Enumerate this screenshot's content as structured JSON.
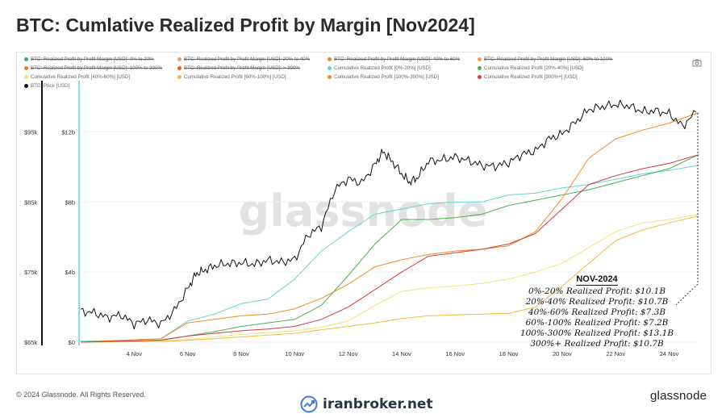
{
  "title": "BTC: Cumlative Realized Profit by Margin [Nov2024]",
  "legend": [
    {
      "label": "BTC: Realized Profit by Profit Margin [USD]: 0% to 20%",
      "color": "#3aa88a",
      "struck": true
    },
    {
      "label": "BTC: Realized Profit by Profit Margin [USD]: 20% to 40%",
      "color": "#e8a060",
      "struck": true
    },
    {
      "label": "BTC: Realized Profit by Profit Margin [USD]: 40% to 60%",
      "color": "#e8922e",
      "struck": true
    },
    {
      "label": "BTC: Realized Profit by Profit Margin [USD]: 60% to 100%",
      "color": "#f0a040",
      "struck": true
    },
    {
      "label": "BTC: Realized Profit by Profit Margin [USD]: 100% to 300%",
      "color": "#e07a3a",
      "struck": true
    },
    {
      "label": "BTC: Realized Profit by Profit Margin [USD]: > 300%",
      "color": "#d9603a",
      "struck": true
    },
    {
      "label": "Cumulative Realized Profit [0%-20%] [USD]",
      "color": "#5ed8d0",
      "struck": false
    },
    {
      "label": "Cumulative Realized Profit [20%-40%] [USD]",
      "color": "#4caf50",
      "struck": false
    },
    {
      "label": "Cumulative Realized Profit [40%-60%] [USD]",
      "color": "#f2e27a",
      "struck": false
    },
    {
      "label": "Cumulative Realized Profit [60%-100%] [USD]",
      "color": "#f5b83c",
      "struck": false
    },
    {
      "label": "Cumulative Realized Profit [100%-300%] [USD]",
      "color": "#f08a24",
      "struck": false
    },
    {
      "label": "Cumulative Realized Profit [300%+] [USD]",
      "color": "#d03a3a",
      "struck": false
    },
    {
      "label": "BTC: Price [USD]",
      "color": "#111111",
      "struck": false
    }
  ],
  "watermark_center": "glassnode",
  "annotation": {
    "title": "NOV-2024",
    "lines": [
      "0%-20% Realized Profit: $10.1B",
      "20%-40% Realized Profit: $10.7B",
      "40%-60% Realized Profit: $7.3B",
      "60%-100% Realized Profit: $7.2B",
      "100%-300% Realized Profit: $13.1B",
      "300%+ Realized Profit: $10.7B"
    ]
  },
  "footer": {
    "copyright": "© 2024 Glassnode. All Rights Reserved.",
    "source_watermark": "iranbroker.net",
    "brand": "glassnode"
  },
  "chart_data": {
    "type": "line",
    "x_ticks": [
      "4 Nov",
      "6 Nov",
      "8 Nov",
      "10 Nov",
      "12 Nov",
      "14 Nov",
      "16 Nov",
      "18 Nov",
      "20 Nov",
      "22 Nov",
      "24 Nov"
    ],
    "x_range_days": [
      2.0,
      25.1
    ],
    "y_left": {
      "ticks": [
        "$65k",
        "$75k",
        "$85k",
        "$95k"
      ],
      "values": [
        65000,
        75000,
        85000,
        95000
      ],
      "range": [
        65000,
        100000
      ]
    },
    "y_right": {
      "ticks": [
        "$0",
        "$4b",
        "$8b",
        "$12b"
      ],
      "values": [
        0,
        4,
        8,
        12
      ],
      "range": [
        0,
        14
      ]
    },
    "price_series": {
      "name": "BTC: Price [USD]",
      "color": "#111111",
      "axis": "left",
      "x": [
        2.0,
        2.5,
        3.0,
        3.5,
        4.0,
        4.5,
        5.0,
        5.5,
        6.0,
        6.3,
        6.6,
        7.0,
        7.5,
        8.0,
        8.5,
        9.0,
        9.5,
        10.0,
        10.5,
        11.0,
        11.5,
        12.0,
        12.5,
        13.0,
        13.3,
        13.6,
        14.0,
        14.3,
        14.6,
        15.0,
        15.5,
        16.0,
        16.5,
        17.0,
        17.5,
        18.0,
        18.5,
        19.0,
        19.5,
        20.0,
        20.5,
        21.0,
        21.5,
        22.0,
        22.5,
        23.0,
        23.5,
        24.0,
        24.5,
        25.0
      ],
      "y": [
        69400,
        69200,
        68500,
        68900,
        67600,
        68200,
        67600,
        69500,
        72600,
        74700,
        75200,
        75900,
        76200,
        76300,
        76100,
        76700,
        76400,
        76800,
        80300,
        81500,
        86800,
        88300,
        87700,
        90300,
        92200,
        91000,
        89000,
        87800,
        88500,
        90800,
        91000,
        91400,
        90900,
        90200,
        90100,
        90600,
        91800,
        92300,
        94000,
        94700,
        96400,
        98200,
        98600,
        98900,
        98700,
        97900,
        98000,
        97600,
        95800,
        97800
      ]
    },
    "series": [
      {
        "name": "Cumulative Realized Profit [0%-20%] [USD]",
        "color": "#5ed8d0",
        "x": [
          2.0,
          3.5,
          5.0,
          6.0,
          7.0,
          8.0,
          9.0,
          10.0,
          11.0,
          12.0,
          13.0,
          14.0,
          15.0,
          16.0,
          17.0,
          18.0,
          19.0,
          20.0,
          21.0,
          22.0,
          23.0,
          24.0,
          25.1
        ],
        "y": [
          0.05,
          0.1,
          0.2,
          1.2,
          1.6,
          2.2,
          2.45,
          3.6,
          5.2,
          6.3,
          7.3,
          7.6,
          7.9,
          8.0,
          8.0,
          8.4,
          8.5,
          8.8,
          9.0,
          9.3,
          9.6,
          9.8,
          10.1
        ]
      },
      {
        "name": "Cumulative Realized Profit [20%-40%] [USD]",
        "color": "#4caf50",
        "x": [
          2.0,
          3.5,
          5.0,
          6.0,
          7.0,
          8.0,
          9.0,
          10.0,
          11.0,
          12.0,
          13.0,
          14.0,
          15.0,
          16.0,
          17.0,
          18.0,
          19.0,
          20.0,
          21.0,
          22.0,
          23.0,
          24.0,
          25.1
        ],
        "y": [
          0.0,
          0.05,
          0.1,
          0.35,
          0.6,
          0.9,
          1.1,
          1.3,
          2.1,
          3.8,
          5.6,
          7.0,
          7.0,
          7.1,
          7.3,
          7.8,
          8.1,
          8.4,
          8.7,
          9.1,
          9.5,
          9.9,
          10.7
        ]
      },
      {
        "name": "Cumulative Realized Profit [40%-60%] [USD]",
        "color": "#f2e27a",
        "x": [
          2.0,
          3.5,
          5.0,
          6.0,
          7.0,
          8.0,
          9.0,
          10.0,
          11.0,
          12.0,
          13.0,
          14.0,
          15.0,
          16.0,
          17.0,
          18.0,
          19.0,
          20.0,
          21.0,
          22.0,
          23.0,
          24.0,
          25.1
        ],
        "y": [
          0.0,
          0.03,
          0.06,
          0.15,
          0.3,
          0.45,
          0.55,
          0.65,
          0.85,
          1.2,
          2.1,
          2.9,
          3.1,
          3.2,
          3.35,
          3.6,
          4.0,
          4.5,
          5.4,
          6.3,
          6.8,
          7.0,
          7.3
        ]
      },
      {
        "name": "Cumulative Realized Profit [60%-100%] [USD]",
        "color": "#f5b83c",
        "x": [
          2.0,
          3.5,
          5.0,
          6.0,
          7.0,
          8.0,
          9.0,
          10.0,
          11.0,
          12.0,
          13.0,
          14.0,
          15.0,
          16.0,
          17.0,
          18.0,
          19.0,
          20.0,
          21.0,
          22.0,
          23.0,
          24.0,
          25.1
        ],
        "y": [
          0.0,
          0.02,
          0.04,
          0.1,
          0.2,
          0.3,
          0.4,
          0.5,
          0.7,
          0.9,
          1.1,
          1.35,
          1.5,
          1.55,
          1.6,
          1.65,
          2.0,
          3.2,
          4.5,
          5.8,
          6.4,
          6.8,
          7.2
        ]
      },
      {
        "name": "Cumulative Realized Profit [100%-300%] [USD]",
        "color": "#f08a24",
        "x": [
          2.0,
          3.5,
          5.0,
          6.0,
          7.0,
          8.0,
          9.0,
          10.0,
          11.0,
          12.0,
          13.0,
          14.0,
          15.0,
          16.0,
          17.0,
          18.0,
          19.0,
          20.0,
          21.0,
          22.0,
          23.0,
          24.0,
          25.1
        ],
        "y": [
          0.0,
          0.1,
          0.2,
          1.1,
          1.3,
          1.5,
          1.6,
          1.9,
          2.5,
          3.3,
          4.3,
          4.7,
          5.0,
          5.2,
          5.3,
          5.5,
          6.3,
          8.2,
          10.5,
          11.6,
          12.1,
          12.5,
          13.1
        ]
      },
      {
        "name": "Cumulative Realized Profit [300%+] [USD]",
        "color": "#d03a3a",
        "x": [
          2.0,
          3.5,
          5.0,
          6.0,
          7.0,
          8.0,
          9.0,
          10.0,
          11.0,
          12.0,
          13.0,
          14.0,
          15.0,
          16.0,
          17.0,
          18.0,
          19.0,
          20.0,
          21.0,
          22.0,
          23.0,
          24.0,
          25.1
        ],
        "y": [
          0.0,
          0.05,
          0.12,
          0.35,
          0.5,
          0.65,
          0.75,
          0.9,
          1.3,
          2.0,
          3.0,
          4.0,
          4.9,
          5.1,
          5.3,
          5.6,
          6.2,
          7.6,
          9.0,
          9.5,
          9.9,
          10.2,
          10.7
        ]
      }
    ]
  }
}
